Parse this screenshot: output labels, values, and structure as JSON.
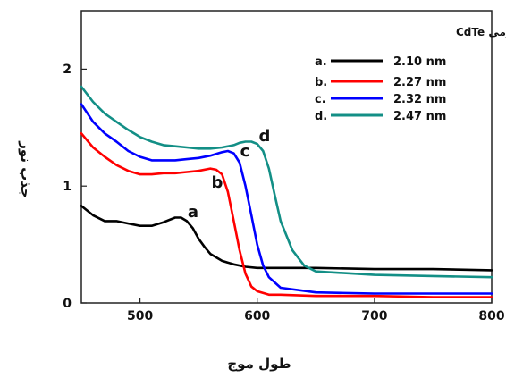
{
  "chart_data": {
    "type": "line",
    "xlabel": "طول موج",
    "ylabel": "جذب نور",
    "xlim": [
      450,
      800
    ],
    "ylim": [
      0,
      2.5
    ],
    "xticks": [
      "500",
      "600",
      "700",
      "800"
    ],
    "yticks": [
      "0",
      "1",
      "2"
    ],
    "grid": false,
    "legend": {
      "title": "شعاع نقاط کوانتومی CdTe",
      "placement": "top-right"
    },
    "series": [
      {
        "name": "2.10 nm",
        "key": "a.",
        "label": "a",
        "color": "#000000",
        "x": [
          450,
          460,
          470,
          480,
          490,
          500,
          510,
          520,
          530,
          535,
          540,
          545,
          550,
          555,
          560,
          570,
          580,
          590,
          600,
          620,
          650,
          700,
          750,
          800
        ],
        "y": [
          0.83,
          0.75,
          0.7,
          0.7,
          0.68,
          0.66,
          0.66,
          0.69,
          0.73,
          0.73,
          0.7,
          0.64,
          0.55,
          0.48,
          0.42,
          0.36,
          0.33,
          0.31,
          0.3,
          0.3,
          0.3,
          0.29,
          0.29,
          0.28
        ]
      },
      {
        "name": "2.27 nm",
        "key": "b.",
        "label": "b",
        "color": "#ff0000",
        "x": [
          450,
          460,
          470,
          480,
          490,
          500,
          510,
          520,
          530,
          540,
          550,
          560,
          565,
          570,
          575,
          580,
          585,
          590,
          595,
          600,
          610,
          620,
          650,
          700,
          750,
          800
        ],
        "y": [
          1.45,
          1.33,
          1.25,
          1.18,
          1.13,
          1.1,
          1.1,
          1.11,
          1.11,
          1.12,
          1.13,
          1.15,
          1.14,
          1.1,
          0.95,
          0.7,
          0.45,
          0.25,
          0.14,
          0.1,
          0.07,
          0.07,
          0.06,
          0.06,
          0.05,
          0.05
        ]
      },
      {
        "name": "2.32 nm",
        "key": "c.",
        "label": "c",
        "color": "#0000ff",
        "x": [
          450,
          460,
          470,
          480,
          490,
          500,
          510,
          520,
          530,
          540,
          550,
          560,
          570,
          575,
          580,
          585,
          590,
          595,
          600,
          605,
          610,
          620,
          650,
          700,
          750,
          800
        ],
        "y": [
          1.7,
          1.55,
          1.45,
          1.38,
          1.3,
          1.25,
          1.22,
          1.22,
          1.22,
          1.23,
          1.24,
          1.26,
          1.29,
          1.3,
          1.28,
          1.2,
          1.0,
          0.75,
          0.5,
          0.32,
          0.22,
          0.13,
          0.09,
          0.08,
          0.08,
          0.08
        ]
      },
      {
        "name": "2.47 nm",
        "key": "d.",
        "label": "d",
        "color": "#138f86",
        "x": [
          450,
          460,
          470,
          480,
          490,
          500,
          510,
          520,
          530,
          540,
          550,
          560,
          570,
          580,
          585,
          590,
          595,
          600,
          605,
          610,
          615,
          620,
          630,
          640,
          650,
          700,
          750,
          800
        ],
        "y": [
          1.85,
          1.72,
          1.62,
          1.55,
          1.48,
          1.42,
          1.38,
          1.35,
          1.34,
          1.33,
          1.32,
          1.32,
          1.33,
          1.35,
          1.37,
          1.38,
          1.38,
          1.36,
          1.3,
          1.15,
          0.92,
          0.7,
          0.45,
          0.32,
          0.27,
          0.24,
          0.23,
          0.22
        ]
      }
    ]
  }
}
